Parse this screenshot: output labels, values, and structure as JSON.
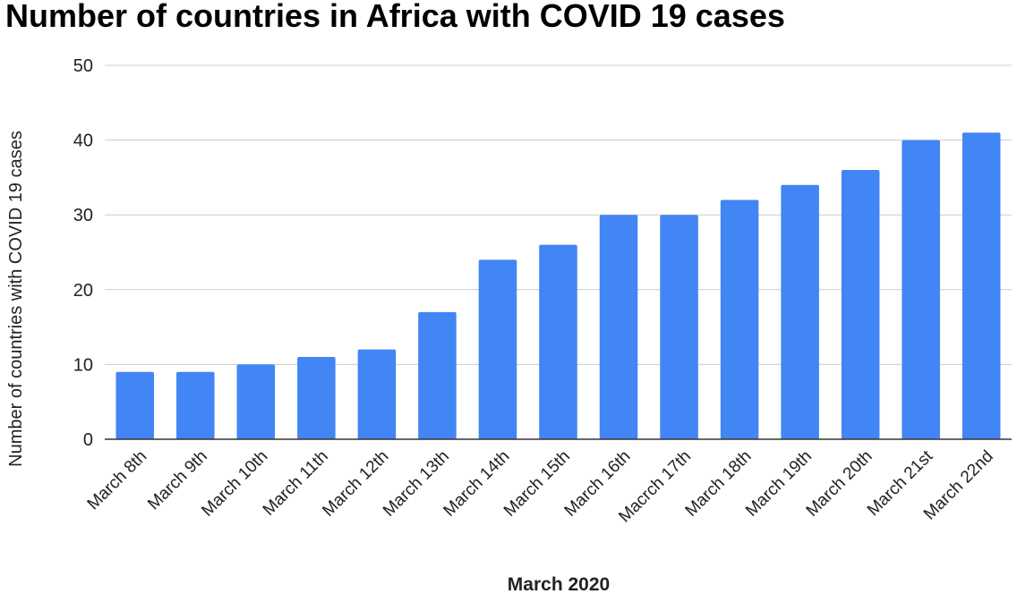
{
  "chart_data": {
    "type": "bar",
    "title": "Number of countries in Africa with COVID 19 cases",
    "xlabel": "March 2020",
    "ylabel": "Number of countries with COVID 19 cases",
    "categories": [
      "March 8th",
      "March 9th",
      "March 10th",
      "March 11th",
      "March 12th",
      "March 13th",
      "March 14th",
      "March 15th",
      "March 16th",
      "Macrch 17th",
      "March 18th",
      "March 19th",
      "March 20th",
      "March 21st",
      "March 22nd"
    ],
    "values": [
      9,
      9,
      10,
      11,
      12,
      17,
      24,
      26,
      30,
      30,
      32,
      34,
      36,
      40,
      41
    ],
    "ylim": [
      0,
      50
    ],
    "yticks": [
      "0",
      "10",
      "20",
      "30",
      "40",
      "50"
    ],
    "grid": true,
    "legend": "none",
    "bar_color": "#4285f4"
  }
}
